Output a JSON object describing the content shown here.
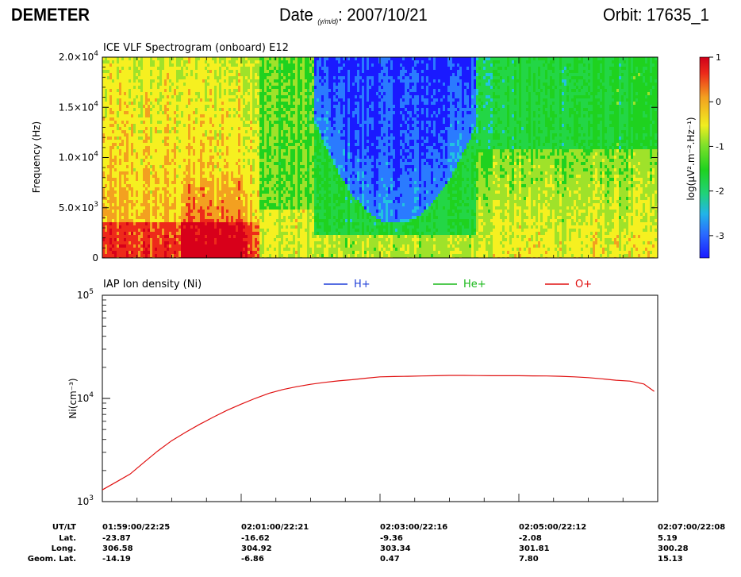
{
  "header": {
    "instrument": "DEMETER",
    "date_label": "Date",
    "date_format": "(y/m/d)",
    "date_sep": ":",
    "date_value": "2007/10/21",
    "orbit_label": "Orbit: 17635_1"
  },
  "chart_data": [
    {
      "type": "heatmap",
      "title": "ICE VLF Spectrogram (onboard) E12",
      "xlabel": "",
      "ylabel": "Frequency (Hz)",
      "ylim": [
        0,
        20000
      ],
      "yticks": [
        {
          "value": 0,
          "label": "0"
        },
        {
          "value": 5000,
          "label": "5.0",
          "exp": "3"
        },
        {
          "value": 10000,
          "label": "1.0",
          "exp": "4"
        },
        {
          "value": 15000,
          "label": "1.5",
          "exp": "4"
        },
        {
          "value": 20000,
          "label": "2.0",
          "exp": "4"
        }
      ],
      "colorbar": {
        "label": "log(μV².m⁻².Hz⁻¹)",
        "range": [
          -3.5,
          1
        ],
        "ticks": [
          "1",
          "0",
          "-1",
          "-2",
          "-3"
        ],
        "tick_values": [
          1,
          0,
          -1,
          -2,
          -3
        ],
        "colors": [
          "#1a1aff",
          "#2a7bff",
          "#22c3e0",
          "#23d646",
          "#1fd21f",
          "#9fe22a",
          "#f6f020",
          "#f3a020",
          "#ee2a1a",
          "#d8001a"
        ]
      },
      "description_regions": [
        {
          "x_start": 0.0,
          "x_end": 0.28,
          "pattern": "yellow-red"
        },
        {
          "x_start": 0.28,
          "x_end": 0.38,
          "pattern": "green"
        },
        {
          "x_start": 0.38,
          "x_end": 0.67,
          "pattern": "blue-upper-green-lower"
        },
        {
          "x_start": 0.67,
          "x_end": 1.0,
          "pattern": "green-cyan-upper-yellow-lower"
        }
      ]
    },
    {
      "type": "line",
      "title": "IAP Ion density (Ni)",
      "xlabel": "",
      "ylabel": "Ni(cm⁻³)",
      "yscale": "log",
      "ylim": [
        1000,
        100000
      ],
      "yticks": [
        {
          "value": 1000,
          "base": "10",
          "exp": "3"
        },
        {
          "value": 10000,
          "base": "10",
          "exp": "4"
        },
        {
          "value": 100000,
          "base": "10",
          "exp": "5"
        }
      ],
      "xlim": [
        0,
        8
      ],
      "x_unit": "minutes after 01:59:00",
      "legend_position": "top",
      "series": [
        {
          "name": "H+",
          "color": "#1f3fd8",
          "x": [],
          "values": []
        },
        {
          "name": "He+",
          "color": "#18b818",
          "x": [],
          "values": []
        },
        {
          "name": "O+",
          "color": "#e01010",
          "x": [
            0,
            0.2,
            0.4,
            0.6,
            0.8,
            1.0,
            1.2,
            1.4,
            1.6,
            1.8,
            2.0,
            2.2,
            2.4,
            2.6,
            2.8,
            3.0,
            3.2,
            3.4,
            3.6,
            3.8,
            4.0,
            4.2,
            4.4,
            4.6,
            4.8,
            5.0,
            5.2,
            5.4,
            5.6,
            5.8,
            6.0,
            6.2,
            6.4,
            6.6,
            6.8,
            7.0,
            7.2,
            7.4,
            7.6,
            7.8,
            7.95
          ],
          "values": [
            1300,
            1550,
            1850,
            2400,
            3100,
            3900,
            4700,
            5600,
            6600,
            7700,
            8800,
            10000,
            11200,
            12200,
            13000,
            13700,
            14300,
            14800,
            15200,
            15700,
            16200,
            16300,
            16400,
            16500,
            16600,
            16700,
            16700,
            16650,
            16600,
            16600,
            16600,
            16550,
            16500,
            16400,
            16200,
            15900,
            15500,
            15000,
            14700,
            13800,
            11700
          ]
        }
      ]
    }
  ],
  "xaxis_table": {
    "row_labels": [
      "UT/LT",
      "Lat.",
      "Long.",
      "Geom. Lat."
    ],
    "columns": [
      {
        "t": 0,
        "values": [
          "01:59:00/22:25",
          "-23.87",
          "306.58",
          "-14.19"
        ]
      },
      {
        "t": 2,
        "values": [
          "02:01:00/22:21",
          "-16.62",
          "304.92",
          "-6.86"
        ]
      },
      {
        "t": 4,
        "values": [
          "02:03:00/22:16",
          "-9.36",
          "303.34",
          "0.47"
        ]
      },
      {
        "t": 6,
        "values": [
          "02:05:00/22:12",
          "-2.08",
          "301.81",
          "7.80"
        ]
      },
      {
        "t": 8,
        "values": [
          "02:07:00/22:08",
          "5.19",
          "300.28",
          "15.13"
        ]
      }
    ]
  }
}
